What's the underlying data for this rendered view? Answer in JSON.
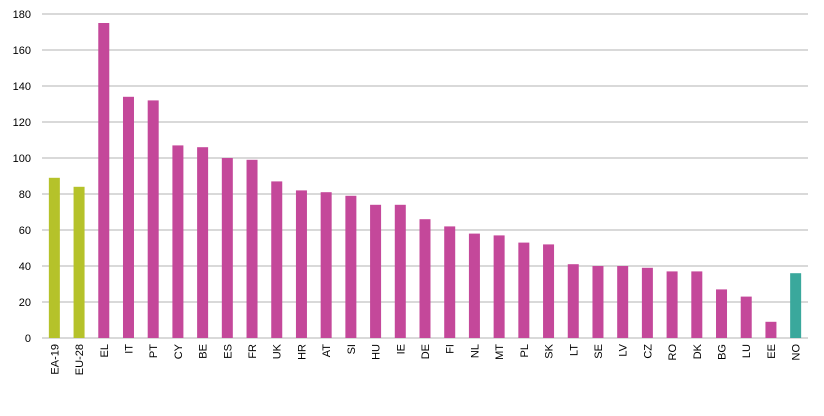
{
  "chart_data": {
    "type": "bar",
    "categories": [
      "EA-19",
      "EU-28",
      "EL",
      "IT",
      "PT",
      "CY",
      "BE",
      "ES",
      "FR",
      "UK",
      "HR",
      "AT",
      "SI",
      "HU",
      "IE",
      "DE",
      "FI",
      "NL",
      "MT",
      "PL",
      "SK",
      "LT",
      "SE",
      "LV",
      "CZ",
      "RO",
      "DK",
      "BG",
      "LU",
      "EE",
      "NO"
    ],
    "values": [
      89,
      84,
      175,
      134,
      132,
      107,
      106,
      100,
      99,
      87,
      82,
      81,
      79,
      74,
      74,
      66,
      62,
      58,
      57,
      53,
      52,
      41,
      40,
      40,
      39,
      37,
      37,
      27,
      23,
      9,
      36
    ],
    "colors": [
      "#b5c22a",
      "#b5c22a",
      "#c4489a",
      "#c4489a",
      "#c4489a",
      "#c4489a",
      "#c4489a",
      "#c4489a",
      "#c4489a",
      "#c4489a",
      "#c4489a",
      "#c4489a",
      "#c4489a",
      "#c4489a",
      "#c4489a",
      "#c4489a",
      "#c4489a",
      "#c4489a",
      "#c4489a",
      "#c4489a",
      "#c4489a",
      "#c4489a",
      "#c4489a",
      "#c4489a",
      "#c4489a",
      "#c4489a",
      "#c4489a",
      "#c4489a",
      "#c4489a",
      "#c4489a",
      "#3aa89c"
    ],
    "ylim": [
      0,
      180
    ],
    "yticks": [
      0,
      20,
      40,
      60,
      80,
      100,
      120,
      140,
      160,
      180
    ],
    "grid": true
  }
}
